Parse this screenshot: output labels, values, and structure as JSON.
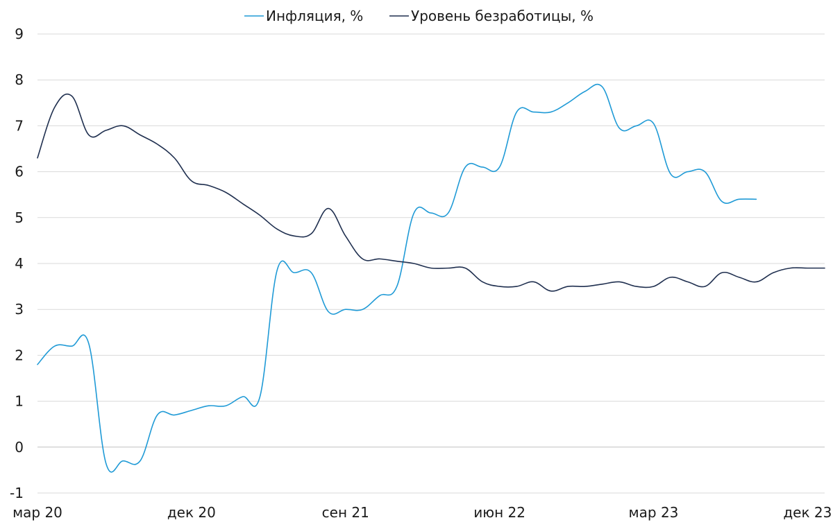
{
  "chart_data": {
    "type": "line",
    "title": "",
    "xlabel": "",
    "ylabel": "",
    "ylim": [
      -1,
      9
    ],
    "yticks": [
      -1,
      0,
      1,
      2,
      3,
      4,
      5,
      6,
      7,
      8,
      9
    ],
    "grid": true,
    "legend_position": "top",
    "x_ticks": [
      {
        "month": "2020-03",
        "label": "мар 20"
      },
      {
        "month": "2020-12",
        "label": "дек 20"
      },
      {
        "month": "2021-09",
        "label": "сен 21"
      },
      {
        "month": "2022-06",
        "label": "июн 22"
      },
      {
        "month": "2023-03",
        "label": "мар 23"
      },
      {
        "month": "2023-12",
        "label": "дек 23"
      }
    ],
    "x_range": [
      "2020-03",
      "2024-01"
    ],
    "series": [
      {
        "name": "Инфляция, %",
        "color": "#1f9ad6",
        "points": [
          [
            "2020-03",
            1.8
          ],
          [
            "2020-04",
            2.2
          ],
          [
            "2020-05",
            2.2
          ],
          [
            "2020-06",
            2.25
          ],
          [
            "2020-07",
            -0.35
          ],
          [
            "2020-08",
            -0.3
          ],
          [
            "2020-09",
            -0.3
          ],
          [
            "2020-10",
            0.7
          ],
          [
            "2020-11",
            0.7
          ],
          [
            "2020-12",
            0.8
          ],
          [
            "2021-01",
            0.9
          ],
          [
            "2021-02",
            0.9
          ],
          [
            "2021-03",
            1.1
          ],
          [
            "2021-04",
            1.1
          ],
          [
            "2021-05",
            3.85
          ],
          [
            "2021-06",
            3.8
          ],
          [
            "2021-07",
            3.8
          ],
          [
            "2021-08",
            2.95
          ],
          [
            "2021-09",
            3.0
          ],
          [
            "2021-10",
            3.0
          ],
          [
            "2021-11",
            3.3
          ],
          [
            "2021-12",
            3.5
          ],
          [
            "2022-01",
            5.1
          ],
          [
            "2022-02",
            5.1
          ],
          [
            "2022-03",
            5.1
          ],
          [
            "2022-04",
            6.1
          ],
          [
            "2022-05",
            6.1
          ],
          [
            "2022-06",
            6.1
          ],
          [
            "2022-07",
            7.3
          ],
          [
            "2022-08",
            7.3
          ],
          [
            "2022-09",
            7.3
          ],
          [
            "2022-10",
            7.5
          ],
          [
            "2022-11",
            7.75
          ],
          [
            "2022-12",
            7.85
          ],
          [
            "2023-01",
            6.95
          ],
          [
            "2023-02",
            7.0
          ],
          [
            "2023-03",
            7.05
          ],
          [
            "2023-04",
            5.95
          ],
          [
            "2023-05",
            6.0
          ],
          [
            "2023-06",
            6.0
          ],
          [
            "2023-07",
            5.35
          ],
          [
            "2023-08",
            5.4
          ],
          [
            "2023-09",
            5.4
          ]
        ]
      },
      {
        "name": "Уровень безработицы, %",
        "color": "#1f2f4f",
        "points": [
          [
            "2020-03",
            6.3
          ],
          [
            "2020-04",
            7.4
          ],
          [
            "2020-05",
            7.65
          ],
          [
            "2020-06",
            6.8
          ],
          [
            "2020-07",
            6.9
          ],
          [
            "2020-08",
            7.0
          ],
          [
            "2020-09",
            6.8
          ],
          [
            "2020-10",
            6.6
          ],
          [
            "2020-11",
            6.3
          ],
          [
            "2020-12",
            5.8
          ],
          [
            "2021-01",
            5.7
          ],
          [
            "2021-02",
            5.55
          ],
          [
            "2021-03",
            5.3
          ],
          [
            "2021-04",
            5.05
          ],
          [
            "2021-05",
            4.75
          ],
          [
            "2021-06",
            4.6
          ],
          [
            "2021-07",
            4.65
          ],
          [
            "2021-08",
            5.2
          ],
          [
            "2021-09",
            4.6
          ],
          [
            "2021-10",
            4.1
          ],
          [
            "2021-11",
            4.1
          ],
          [
            "2021-12",
            4.05
          ],
          [
            "2022-01",
            4.0
          ],
          [
            "2022-02",
            3.9
          ],
          [
            "2022-03",
            3.9
          ],
          [
            "2022-04",
            3.9
          ],
          [
            "2022-05",
            3.6
          ],
          [
            "2022-06",
            3.5
          ],
          [
            "2022-07",
            3.5
          ],
          [
            "2022-08",
            3.6
          ],
          [
            "2022-09",
            3.4
          ],
          [
            "2022-10",
            3.5
          ],
          [
            "2022-11",
            3.5
          ],
          [
            "2022-12",
            3.55
          ],
          [
            "2023-01",
            3.6
          ],
          [
            "2023-02",
            3.5
          ],
          [
            "2023-03",
            3.5
          ],
          [
            "2023-04",
            3.7
          ],
          [
            "2023-05",
            3.6
          ],
          [
            "2023-06",
            3.5
          ],
          [
            "2023-07",
            3.8
          ],
          [
            "2023-08",
            3.7
          ],
          [
            "2023-09",
            3.6
          ],
          [
            "2023-10",
            3.8
          ],
          [
            "2023-11",
            3.9
          ],
          [
            "2023-12",
            3.9
          ],
          [
            "2024-01",
            3.9
          ]
        ]
      }
    ]
  }
}
